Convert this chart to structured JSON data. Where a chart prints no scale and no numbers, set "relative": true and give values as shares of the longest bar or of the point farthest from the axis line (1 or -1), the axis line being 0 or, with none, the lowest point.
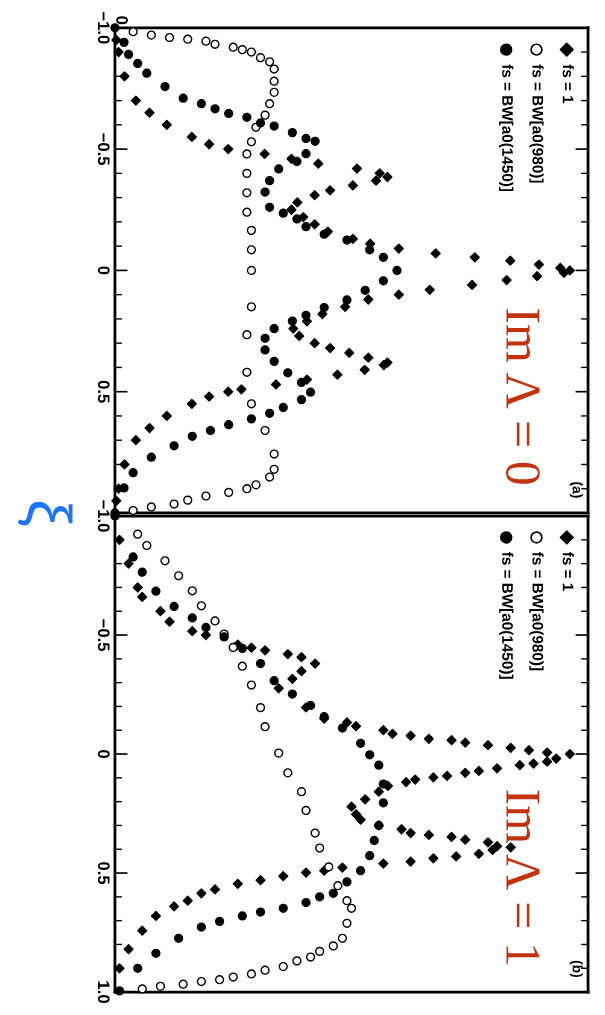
{
  "chart_data": [
    {
      "type": "scatter",
      "relative": true,
      "orientation": "horizontal",
      "ylabel": "ξ",
      "legend": "top right",
      "ylim": [
        1,
        -1
      ],
      "yticks": [
        {
          "value": -1,
          "label": "−1.0"
        },
        {
          "value": -0.9,
          "label": null
        },
        {
          "value": -0.8,
          "label": null
        },
        {
          "value": -0.7,
          "label": null
        },
        {
          "value": -0.6,
          "label": null
        },
        {
          "value": -0.5,
          "label": "−0.5"
        },
        {
          "value": -0.4,
          "label": null
        },
        {
          "value": -0.3,
          "label": null
        },
        {
          "value": -0.2,
          "label": null
        },
        {
          "value": -0.1,
          "label": null
        },
        0,
        {
          "value": 0.1,
          "label": null
        },
        {
          "value": 0.2,
          "label": null
        },
        {
          "value": 0.3,
          "label": null
        },
        {
          "value": 0.4,
          "label": null
        },
        0.5,
        {
          "value": 0.6,
          "label": null
        },
        {
          "value": 0.7,
          "label": null
        },
        {
          "value": 0.8,
          "label": null
        },
        {
          "value": 0.9,
          "label": null
        },
        {
          "value": 1,
          "label": null
        }
      ],
      "annotations": [
        "(a)",
        "Im Λ = 0",
        "0"
      ],
      "series": [
        {
          "name": "fs = 1",
          "color": "#000000",
          "marker": "diamond",
          "x": [
            -0.95,
            -0.9,
            -0.8,
            -0.7,
            -0.65,
            -0.6,
            -0.55,
            -0.52,
            -0.5,
            -0.48,
            -0.46,
            -0.44,
            -0.42,
            -0.4,
            -0.385,
            -0.37,
            -0.35,
            -0.33,
            -0.31,
            -0.28,
            -0.25,
            -0.22,
            -0.19,
            -0.16,
            -0.13,
            -0.11,
            -0.09,
            -0.07,
            -0.054,
            -0.04,
            -0.024,
            -0.01,
            0,
            0.01,
            0.024,
            0.04,
            0.06,
            0.08,
            0.1,
            0.12,
            0.15,
            0.18,
            0.21,
            0.24,
            0.27,
            0.3,
            0.32,
            0.34,
            0.36,
            0.38,
            0.39,
            0.41,
            0.43,
            0.45,
            0.47,
            0.49,
            0.5,
            0.52,
            0.55,
            0.6,
            0.65,
            0.7,
            0.8,
            0.9,
            0.95
          ],
          "values": [
            0.003,
            0.008,
            0.021,
            0.046,
            0.076,
            0.114,
            0.169,
            0.207,
            0.249,
            0.329,
            0.388,
            0.447,
            0.532,
            0.582,
            0.599,
            0.574,
            0.523,
            0.473,
            0.439,
            0.401,
            0.388,
            0.414,
            0.439,
            0.468,
            0.523,
            0.561,
            0.624,
            0.705,
            0.791,
            0.869,
            0.932,
            0.979,
            1,
            0.987,
            0.928,
            0.861,
            0.785,
            0.692,
            0.624,
            0.557,
            0.506,
            0.456,
            0.422,
            0.392,
            0.405,
            0.439,
            0.473,
            0.515,
            0.557,
            0.599,
            0.591,
            0.549,
            0.489,
            0.422,
            0.354,
            0.278,
            0.249,
            0.207,
            0.169,
            0.114,
            0.076,
            0.046,
            0.021,
            0.008,
            0.003
          ]
        },
        {
          "name": "fs = BW[a0(980)]",
          "color": "#ffffff",
          "marker": "circle",
          "x": [
            -0.984,
            -0.97,
            -0.96,
            -0.953,
            -0.945,
            -0.932,
            -0.92,
            -0.91,
            -0.9,
            -0.877,
            -0.86,
            -0.83,
            -0.78,
            -0.734,
            -0.687,
            -0.64,
            -0.59,
            -0.53,
            -0.48,
            -0.4,
            -0.32,
            -0.24,
            -0.165,
            -0.085,
            0,
            0.15,
            0.265,
            0.42,
            0.55,
            0.66,
            0.757,
            0.82,
            0.852,
            0.884,
            0.9,
            0.915,
            0.93,
            0.947,
            0.963,
            0.975,
            0.99
          ],
          "values": [
            0.04,
            0.08,
            0.12,
            0.16,
            0.2,
            0.22,
            0.26,
            0.28,
            0.3,
            0.32,
            0.34,
            0.35,
            0.35,
            0.35,
            0.34,
            0.33,
            0.31,
            0.3,
            0.29,
            0.29,
            0.29,
            0.29,
            0.3,
            0.3,
            0.3,
            0.3,
            0.29,
            0.29,
            0.3,
            0.33,
            0.35,
            0.35,
            0.34,
            0.31,
            0.29,
            0.25,
            0.2,
            0.16,
            0.13,
            0.08,
            0.04
          ]
        },
        {
          "name": "fs = BW[a0(1450)]",
          "color": "#000000",
          "marker": "circle",
          "x": [
            -1,
            -0.94,
            -0.89,
            -0.853,
            -0.813,
            -0.758,
            -0.71,
            -0.687,
            -0.666,
            -0.647,
            -0.631,
            -0.608,
            -0.595,
            -0.568,
            -0.544,
            -0.532,
            -0.481,
            -0.449,
            -0.418,
            -0.37,
            -0.323,
            -0.26,
            -0.236,
            -0.212,
            -0.18,
            -0.149,
            -0.125,
            -0.085,
            -0.054,
            0,
            0.043,
            0.082,
            0.122,
            0.153,
            0.185,
            0.209,
            0.24,
            0.28,
            0.328,
            0.375,
            0.422,
            0.462,
            0.502,
            0.533,
            0.565,
            0.589,
            0.612,
            0.636,
            0.66,
            0.684,
            0.723,
            0.77,
            0.834,
            0.897,
            1
          ],
          "values": [
            0,
            0.02,
            0.03,
            0.05,
            0.07,
            0.11,
            0.15,
            0.19,
            0.22,
            0.25,
            0.29,
            0.32,
            0.35,
            0.39,
            0.42,
            0.44,
            0.42,
            0.4,
            0.36,
            0.34,
            0.33,
            0.34,
            0.37,
            0.4,
            0.42,
            0.46,
            0.51,
            0.56,
            0.59,
            0.62,
            0.59,
            0.55,
            0.51,
            0.46,
            0.42,
            0.39,
            0.35,
            0.33,
            0.33,
            0.35,
            0.38,
            0.41,
            0.43,
            0.41,
            0.37,
            0.34,
            0.3,
            0.25,
            0.21,
            0.17,
            0.13,
            0.08,
            0.04,
            0.02,
            0
          ]
        }
      ]
    },
    {
      "type": "scatter",
      "relative": true,
      "orientation": "horizontal",
      "legend": "top right",
      "ylim": [
        1,
        -1
      ],
      "yticks": [
        {
          "value": -1,
          "label": "−1.0"
        },
        {
          "value": -0.9,
          "label": null
        },
        {
          "value": -0.8,
          "label": null
        },
        {
          "value": -0.7,
          "label": null
        },
        {
          "value": -0.6,
          "label": null
        },
        {
          "value": -0.5,
          "label": "−0.5"
        },
        {
          "value": -0.4,
          "label": null
        },
        {
          "value": -0.3,
          "label": null
        },
        {
          "value": -0.2,
          "label": null
        },
        {
          "value": -0.1,
          "label": null
        },
        0,
        {
          "value": 0.1,
          "label": null
        },
        {
          "value": 0.2,
          "label": null
        },
        {
          "value": 0.3,
          "label": null
        },
        {
          "value": 0.4,
          "label": null
        },
        0.5,
        {
          "value": 0.6,
          "label": null
        },
        {
          "value": 0.7,
          "label": null
        },
        {
          "value": 0.8,
          "label": null
        },
        {
          "value": 0.9,
          "label": null
        },
        {
          "value": 1,
          "label": "1.0"
        }
      ],
      "annotations": [
        "(b)",
        "Im Λ = 1"
      ],
      "series": [
        {
          "name": "fs = 1",
          "color": "#000000",
          "marker": "diamond",
          "x": [
            -0.9,
            -0.8,
            -0.7,
            -0.66,
            -0.6,
            -0.556,
            -0.516,
            -0.5,
            -0.46,
            -0.447,
            -0.436,
            -0.42,
            -0.407,
            -0.38,
            -0.348,
            -0.316,
            -0.276,
            -0.196,
            -0.149,
            -0.133,
            -0.117,
            -0.1,
            -0.085,
            -0.077,
            -0.064,
            -0.058,
            -0.048,
            -0.037,
            -0.026,
            -0.016,
            -0.006,
            0,
            0.019,
            0.032,
            0.04,
            0.047,
            0.06,
            0.071,
            0.079,
            0.092,
            0.098,
            0.107,
            0.118,
            0.134,
            0.158,
            0.19,
            0.221,
            0.253,
            0.276,
            0.3,
            0.316,
            0.332,
            0.34,
            0.348,
            0.36,
            0.371,
            0.387,
            0.392,
            0.403,
            0.419,
            0.43,
            0.438,
            0.452,
            0.46,
            0.477,
            0.49,
            0.498,
            0.513,
            0.53,
            0.545,
            0.569,
            0.585,
            0.616,
            0.64,
            0.68,
            0.742,
            0.82,
            0.9
          ],
          "values": [
            0.01,
            0.03,
            0.05,
            0.06,
            0.1,
            0.12,
            0.17,
            0.2,
            0.27,
            0.3,
            0.33,
            0.38,
            0.41,
            0.44,
            0.41,
            0.39,
            0.36,
            0.42,
            0.46,
            0.51,
            0.53,
            0.59,
            0.61,
            0.65,
            0.69,
            0.74,
            0.77,
            0.82,
            0.87,
            0.91,
            0.95,
            1,
            0.97,
            0.95,
            0.92,
            0.89,
            0.84,
            0.8,
            0.77,
            0.73,
            0.7,
            0.66,
            0.64,
            0.6,
            0.58,
            0.55,
            0.52,
            0.53,
            0.54,
            0.58,
            0.63,
            0.65,
            0.69,
            0.74,
            0.77,
            0.82,
            0.84,
            0.87,
            0.83,
            0.8,
            0.75,
            0.7,
            0.65,
            0.59,
            0.5,
            0.46,
            0.42,
            0.37,
            0.32,
            0.27,
            0.22,
            0.19,
            0.16,
            0.13,
            0.09,
            0.06,
            0.03,
            0.01
          ]
        },
        {
          "name": "fs = BW[a0(980)]",
          "color": "#ffffff",
          "marker": "circle",
          "x": [
            -0.924,
            -0.876,
            -0.812,
            -0.749,
            -0.686,
            -0.623,
            -0.559,
            -0.504,
            -0.448,
            -0.369,
            -0.29,
            -0.195,
            -0.115,
            -0.004,
            0.079,
            0.158,
            0.237,
            0.332,
            0.395,
            0.474,
            0.553,
            0.616,
            0.648,
            0.711,
            0.774,
            0.806,
            0.829,
            0.853,
            0.869,
            0.893,
            0.908,
            0.924,
            0.937,
            0.948,
            0.956,
            0.967,
            0.976,
            0.987
          ],
          "values": [
            0.05,
            0.07,
            0.11,
            0.14,
            0.17,
            0.19,
            0.22,
            0.24,
            0.26,
            0.28,
            0.3,
            0.32,
            0.33,
            0.36,
            0.38,
            0.41,
            0.42,
            0.44,
            0.45,
            0.47,
            0.49,
            0.51,
            0.52,
            0.51,
            0.5,
            0.48,
            0.45,
            0.43,
            0.4,
            0.37,
            0.33,
            0.3,
            0.26,
            0.23,
            0.19,
            0.15,
            0.1,
            0.06
          ]
        },
        {
          "name": "fs = BW[a0(1450)]",
          "color": "#000000",
          "marker": "circle",
          "x": [
            -1,
            -0.828,
            -0.764,
            -0.684,
            -0.62,
            -0.572,
            -0.532,
            -0.492,
            -0.444,
            -0.38,
            -0.308,
            -0.252,
            -0.204,
            -0.157,
            -0.109,
            -0.045,
            0.003,
            0.047,
            0.126,
            0.205,
            0.3,
            0.363,
            0.427,
            0.49,
            0.537,
            0.585,
            0.6,
            0.624,
            0.648,
            0.664,
            0.68,
            0.703,
            0.727,
            0.774,
            0.837,
            0.9,
            0.995
          ],
          "values": [
            0,
            0.04,
            0.06,
            0.09,
            0.13,
            0.17,
            0.2,
            0.24,
            0.28,
            0.32,
            0.35,
            0.39,
            0.43,
            0.46,
            0.5,
            0.54,
            0.56,
            0.58,
            0.59,
            0.59,
            0.58,
            0.57,
            0.56,
            0.54,
            0.51,
            0.48,
            0.45,
            0.42,
            0.37,
            0.32,
            0.28,
            0.23,
            0.19,
            0.14,
            0.09,
            0.05,
            0.01
          ]
        }
      ]
    }
  ]
}
